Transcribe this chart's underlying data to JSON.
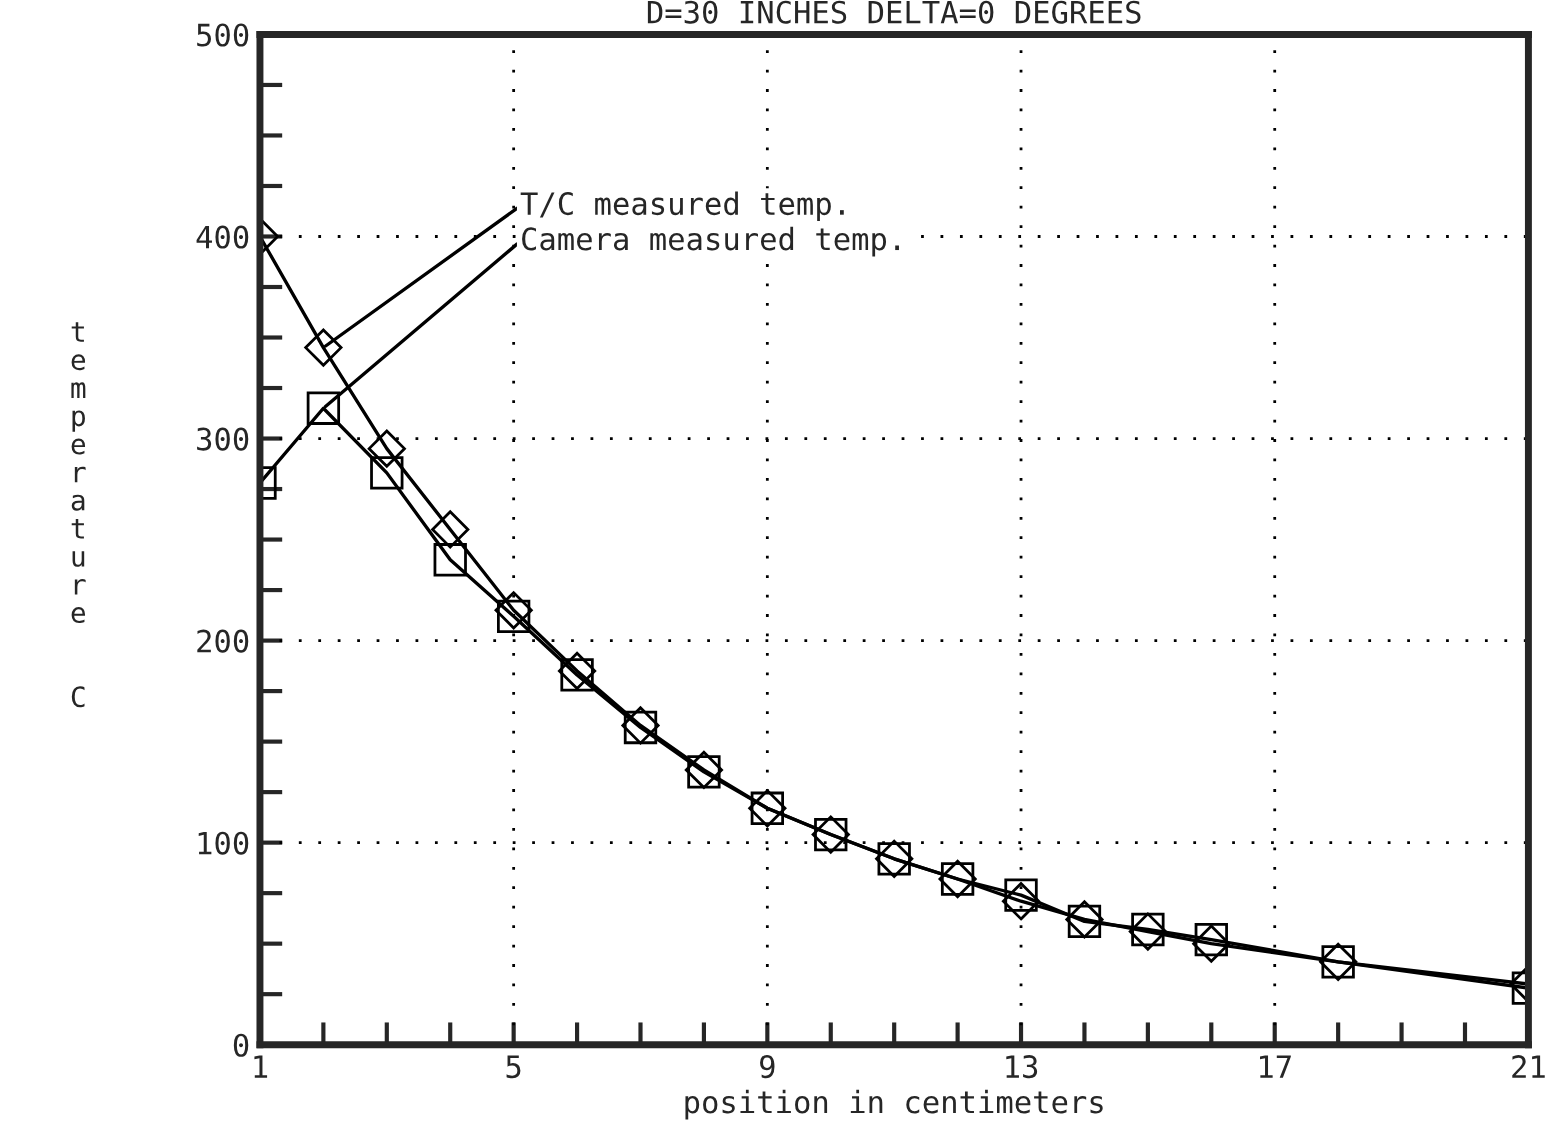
{
  "chart_data": {
    "type": "line",
    "title": "D=30 INCHES DELTA=0 DEGREES",
    "xlabel": "position in centimeters",
    "ylabel": "temperature C",
    "series": [
      {
        "color": "#000000",
        "marker": "diamond",
        "x": [
          1,
          2,
          3,
          4,
          5,
          6,
          7,
          8,
          9,
          10,
          11,
          12,
          13,
          14,
          15,
          16,
          18,
          21
        ],
        "values": [
          400,
          345,
          295,
          255,
          215,
          185,
          158,
          136,
          117,
          104,
          92,
          82,
          71,
          62,
          56,
          50,
          41,
          30
        ]
      },
      {
        "color": "#000000",
        "marker": "square",
        "x": [
          1,
          2,
          3,
          4,
          5,
          6,
          7,
          8,
          9,
          10,
          11,
          12,
          13,
          14,
          15,
          16,
          18,
          21
        ],
        "values": [
          278,
          315,
          283,
          240,
          212,
          183,
          157,
          135,
          117,
          104,
          92,
          82,
          74,
          61,
          57,
          52,
          41,
          28
        ]
      }
    ],
    "annotations": [
      {
        "text": "T/C measured temp.",
        "x": 2,
        "y": 345
      },
      {
        "text": "Camera measured temp.",
        "x": 2,
        "y": 315
      }
    ],
    "xlim": [
      1,
      21
    ],
    "ylim": [
      0,
      500
    ],
    "xticks": [
      1,
      {
        "value": 2,
        "label": null
      },
      {
        "value": 3,
        "label": null
      },
      {
        "value": 4,
        "label": null
      },
      5,
      {
        "value": 6,
        "label": null
      },
      {
        "value": 7,
        "label": null
      },
      {
        "value": 8,
        "label": null
      },
      9,
      {
        "value": 10,
        "label": null
      },
      {
        "value": 11,
        "label": null
      },
      {
        "value": 12,
        "label": null
      },
      13,
      {
        "value": 14,
        "label": null
      },
      {
        "value": 15,
        "label": null
      },
      {
        "value": 16,
        "label": null
      },
      17,
      {
        "value": 18,
        "label": null
      },
      {
        "value": 19,
        "label": null
      },
      {
        "value": 20,
        "label": null
      },
      21
    ],
    "yticks": [
      0,
      {
        "value": 25,
        "label": null
      },
      {
        "value": 50,
        "label": null
      },
      {
        "value": 75,
        "label": null
      },
      100,
      {
        "value": 125,
        "label": null
      },
      {
        "value": 150,
        "label": null
      },
      {
        "value": 175,
        "label": null
      },
      200,
      {
        "value": 225,
        "label": null
      },
      {
        "value": 250,
        "label": null
      },
      {
        "value": 275,
        "label": null
      },
      300,
      {
        "value": 325,
        "label": null
      },
      {
        "value": 350,
        "label": null
      },
      {
        "value": 375,
        "label": null
      },
      400,
      {
        "value": 425,
        "label": null
      },
      {
        "value": 450,
        "label": null
      },
      {
        "value": 475,
        "label": null
      },
      500
    ],
    "grid": true,
    "legend": false,
    "line_style": "solid"
  }
}
